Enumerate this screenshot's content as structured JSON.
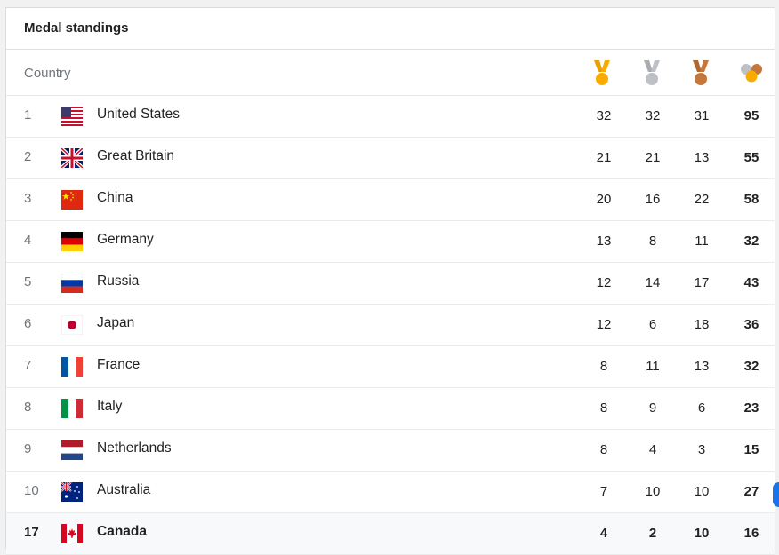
{
  "title": "Medal standings",
  "header": {
    "country_label": "Country",
    "icons": [
      "gold-medal-icon",
      "silver-medal-icon",
      "bronze-medal-icon",
      "total-medals-icon"
    ]
  },
  "colors": {
    "gold": "#f9ab00",
    "silver": "#bdc1c6",
    "bronze": "#c5763b",
    "highlight_row": "#f8f9fa"
  },
  "rows": [
    {
      "rank": "1",
      "country": "United States",
      "flag": "us-flag-icon",
      "gold": "32",
      "silver": "32",
      "bronze": "31",
      "total": "95"
    },
    {
      "rank": "2",
      "country": "Great Britain",
      "flag": "gb-flag-icon",
      "gold": "21",
      "silver": "21",
      "bronze": "13",
      "total": "55"
    },
    {
      "rank": "3",
      "country": "China",
      "flag": "china-flag-icon",
      "gold": "20",
      "silver": "16",
      "bronze": "22",
      "total": "58"
    },
    {
      "rank": "4",
      "country": "Germany",
      "flag": "germany-flag-icon",
      "gold": "13",
      "silver": "8",
      "bronze": "11",
      "total": "32"
    },
    {
      "rank": "5",
      "country": "Russia",
      "flag": "russia-flag-icon",
      "gold": "12",
      "silver": "14",
      "bronze": "17",
      "total": "43"
    },
    {
      "rank": "6",
      "country": "Japan",
      "flag": "japan-flag-icon",
      "gold": "12",
      "silver": "6",
      "bronze": "18",
      "total": "36"
    },
    {
      "rank": "7",
      "country": "France",
      "flag": "france-flag-icon",
      "gold": "8",
      "silver": "11",
      "bronze": "13",
      "total": "32"
    },
    {
      "rank": "8",
      "country": "Italy",
      "flag": "italy-flag-icon",
      "gold": "8",
      "silver": "9",
      "bronze": "6",
      "total": "23"
    },
    {
      "rank": "9",
      "country": "Netherlands",
      "flag": "netherlands-flag-icon",
      "gold": "8",
      "silver": "4",
      "bronze": "3",
      "total": "15"
    },
    {
      "rank": "10",
      "country": "Australia",
      "flag": "australia-flag-icon",
      "gold": "7",
      "silver": "10",
      "bronze": "10",
      "total": "27"
    },
    {
      "rank": "17",
      "country": "Canada",
      "flag": "canada-flag-icon",
      "gold": "4",
      "silver": "2",
      "bronze": "10",
      "total": "16"
    }
  ]
}
